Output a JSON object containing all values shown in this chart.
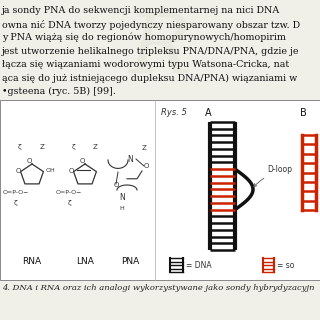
{
  "bg_color": "#f0efe8",
  "panel_bg": "#ffffff",
  "top_text_lines": [
    "ja sondy PNA do sekwencji komplementarnej na nici DNA",
    "owna nić DNA tworzy pojedynczy niesparowany obszar tzw. D",
    "y PNA wiążą się do regionów homopurynowych/homopirim",
    "jest utworzenie helikalnego tripleksu PNA/DNA/PNA, gdzie je",
    "łącza się wiązaniami wodorowymi typu Watsona-Cricka, nat",
    "ąca się do już istniejącego dupleksu DNA/PNA) wiązaniami w",
    "•gsteena (ryc. 5B) [99]."
  ],
  "bottom_caption": "4. DNA i RNA oraz ich analogi wykorzystywane jako sondy hybrydyzacyjn",
  "rys5_label": "Rys. 5",
  "panel_A_label": "A",
  "panel_B_label": "B",
  "dloop_label": "D-loop",
  "legend_dna": "= DNA",
  "legend_so": "= so",
  "black_color": "#111111",
  "red_color": "#cc2200",
  "text_color": "#111111",
  "rung_black": "#111111",
  "rung_red": "#cc2200"
}
